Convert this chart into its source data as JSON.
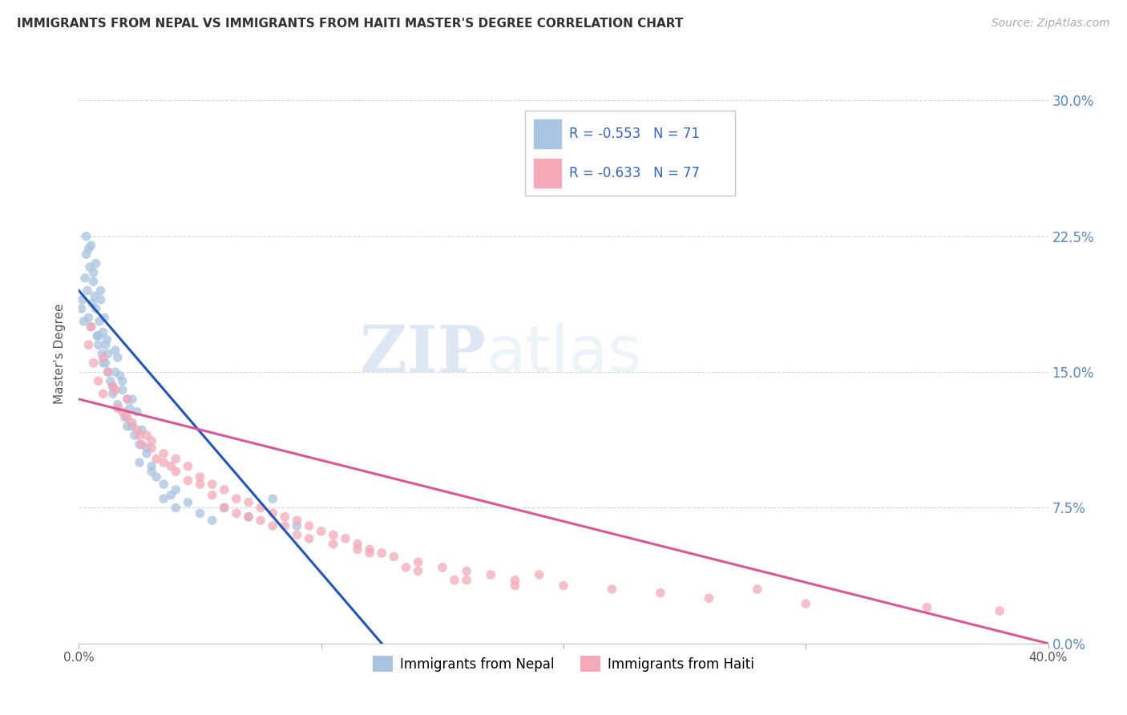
{
  "title": "IMMIGRANTS FROM NEPAL VS IMMIGRANTS FROM HAITI MASTER'S DEGREE CORRELATION CHART",
  "source": "Source: ZipAtlas.com",
  "ylabel": "Master's Degree",
  "ytick_values": [
    0.0,
    7.5,
    15.0,
    22.5,
    30.0
  ],
  "xlim": [
    0.0,
    40.0
  ],
  "ylim": [
    0.0,
    32.0
  ],
  "legend_r1": "R = -0.553",
  "legend_n1": "N = 71",
  "legend_r2": "R = -0.633",
  "legend_n2": "N = 77",
  "nepal_color": "#a8c4e0",
  "haiti_color": "#f4a8b8",
  "line_nepal_color": "#2255bb",
  "line_haiti_color": "#dd5599",
  "watermark_zip": "ZIP",
  "watermark_atlas": "atlas",
  "nepal_x": [
    0.1,
    0.15,
    0.2,
    0.25,
    0.3,
    0.35,
    0.4,
    0.45,
    0.5,
    0.55,
    0.6,
    0.65,
    0.7,
    0.75,
    0.8,
    0.85,
    0.9,
    0.95,
    1.0,
    1.05,
    1.1,
    1.15,
    1.2,
    1.3,
    1.4,
    1.5,
    1.6,
    1.7,
    1.8,
    1.9,
    2.0,
    2.1,
    2.2,
    2.3,
    2.4,
    2.5,
    2.6,
    2.8,
    3.0,
    3.2,
    3.5,
    3.8,
    4.0,
    4.5,
    5.0,
    5.5,
    6.0,
    7.0,
    8.0,
    9.0,
    0.3,
    0.5,
    0.7,
    1.0,
    1.2,
    1.5,
    2.0,
    2.5,
    3.0,
    4.0,
    1.8,
    0.6,
    0.9,
    2.2,
    1.4,
    0.8,
    3.5,
    1.6,
    0.4,
    2.8,
    1.1
  ],
  "nepal_y": [
    18.5,
    19.0,
    17.8,
    20.2,
    21.5,
    19.5,
    18.0,
    20.8,
    17.5,
    18.8,
    20.0,
    19.2,
    18.5,
    17.0,
    16.5,
    17.8,
    19.0,
    16.0,
    17.2,
    18.0,
    15.5,
    16.8,
    15.0,
    14.5,
    13.8,
    16.2,
    13.2,
    14.8,
    14.0,
    12.5,
    13.5,
    13.0,
    12.0,
    11.5,
    12.8,
    11.0,
    11.8,
    10.5,
    9.8,
    9.2,
    8.8,
    8.2,
    8.5,
    7.8,
    7.2,
    6.8,
    7.5,
    7.0,
    8.0,
    6.5,
    22.5,
    22.0,
    21.0,
    15.5,
    16.0,
    15.0,
    12.0,
    10.0,
    9.5,
    7.5,
    14.5,
    20.5,
    19.5,
    13.5,
    14.2,
    17.0,
    8.0,
    15.8,
    21.8,
    10.8,
    16.5
  ],
  "haiti_x": [
    0.4,
    0.6,
    0.8,
    1.0,
    1.2,
    1.4,
    1.6,
    1.8,
    2.0,
    2.2,
    2.4,
    2.6,
    2.8,
    3.0,
    3.2,
    3.5,
    3.8,
    4.0,
    4.5,
    5.0,
    5.5,
    6.0,
    6.5,
    7.0,
    7.5,
    8.0,
    8.5,
    9.0,
    9.5,
    10.0,
    10.5,
    11.0,
    11.5,
    12.0,
    12.5,
    13.0,
    14.0,
    15.0,
    16.0,
    17.0,
    18.0,
    19.0,
    20.0,
    22.0,
    24.0,
    26.0,
    28.0,
    30.0,
    35.0,
    38.0,
    1.5,
    2.5,
    3.5,
    4.5,
    5.5,
    6.5,
    7.5,
    8.5,
    9.5,
    10.5,
    11.5,
    13.5,
    15.5,
    0.5,
    1.0,
    2.0,
    3.0,
    4.0,
    5.0,
    6.0,
    7.0,
    8.0,
    9.0,
    12.0,
    14.0,
    16.0,
    18.0
  ],
  "haiti_y": [
    16.5,
    15.5,
    14.5,
    13.8,
    15.0,
    14.2,
    13.0,
    12.8,
    13.5,
    12.2,
    11.8,
    11.0,
    11.5,
    10.8,
    10.2,
    10.5,
    9.8,
    9.5,
    9.8,
    9.2,
    8.8,
    8.5,
    8.0,
    7.8,
    7.5,
    7.2,
    7.0,
    6.8,
    6.5,
    6.2,
    6.0,
    5.8,
    5.5,
    5.2,
    5.0,
    4.8,
    4.5,
    4.2,
    4.0,
    3.8,
    3.5,
    3.8,
    3.2,
    3.0,
    2.8,
    2.5,
    3.0,
    2.2,
    2.0,
    1.8,
    14.0,
    11.5,
    10.0,
    9.0,
    8.2,
    7.2,
    6.8,
    6.5,
    5.8,
    5.5,
    5.2,
    4.2,
    3.5,
    17.5,
    15.8,
    12.5,
    11.2,
    10.2,
    8.8,
    7.5,
    7.0,
    6.5,
    6.0,
    5.0,
    4.0,
    3.5,
    3.2
  ],
  "nepal_line_x0": 0.0,
  "nepal_line_x1": 12.5,
  "nepal_line_y0": 19.5,
  "nepal_line_y1": 0.0,
  "haiti_line_x0": 0.0,
  "haiti_line_x1": 40.0,
  "haiti_line_y0": 13.5,
  "haiti_line_y1": 0.0
}
